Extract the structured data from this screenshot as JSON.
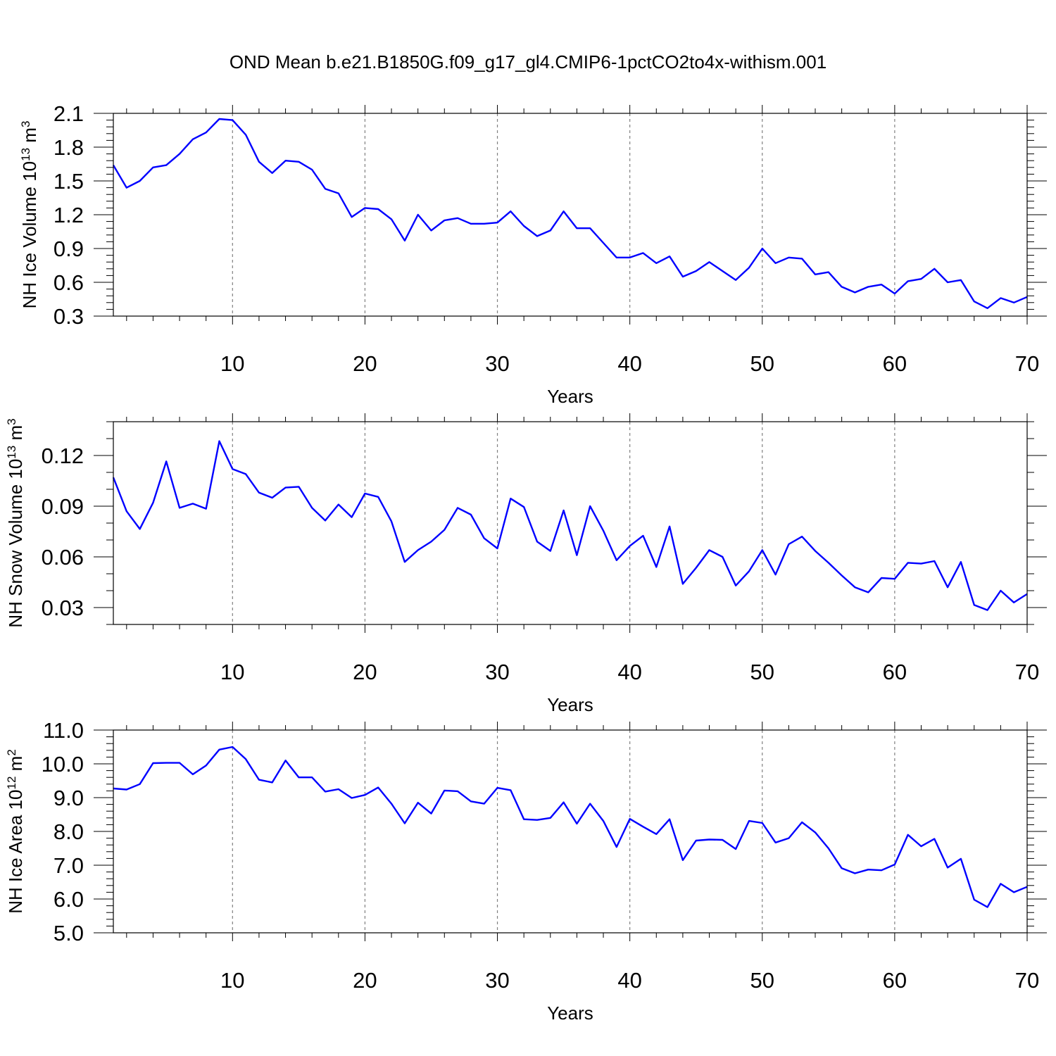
{
  "title": "OND Mean b.e21.B1850G.f09_g17_gl4.CMIP6-1pctCO2to4x-withism.001",
  "colors": {
    "line": "#0000ff",
    "axes": "#000000",
    "grid": "#808080"
  },
  "chart_data": [
    {
      "type": "line",
      "xlabel": "Years",
      "ylabel_main": "NH Ice Volume 10",
      "ylabel_exp": "13",
      "ylabel_unit": " m",
      "ylabel_unit_exp": "3",
      "xlim": [
        1,
        70
      ],
      "ylim": [
        0.3,
        2.1
      ],
      "grid_x": [
        10,
        20,
        30,
        40,
        50,
        60
      ],
      "xticks": [
        10,
        20,
        30,
        40,
        50,
        60,
        70
      ],
      "xtick_labels": [
        "10",
        "20",
        "30",
        "40",
        "50",
        "60",
        "70"
      ],
      "yticks": [
        0.3,
        0.6,
        0.9,
        1.2,
        1.5,
        1.8,
        2.1
      ],
      "ytick_labels": [
        "0.3",
        "0.6",
        "0.9",
        "1.2",
        "1.5",
        "1.8",
        "2.1"
      ],
      "ytick_minor_step": 0.06,
      "x": [
        1,
        2,
        3,
        4,
        5,
        6,
        7,
        8,
        9,
        10,
        11,
        12,
        13,
        14,
        15,
        16,
        17,
        18,
        19,
        20,
        21,
        22,
        23,
        24,
        25,
        26,
        27,
        28,
        29,
        30,
        31,
        32,
        33,
        34,
        35,
        36,
        37,
        38,
        39,
        40,
        41,
        42,
        43,
        44,
        45,
        46,
        47,
        48,
        49,
        50,
        51,
        52,
        53,
        54,
        55,
        56,
        57,
        58,
        59,
        60,
        61,
        62,
        63,
        64,
        65,
        66,
        67,
        68,
        69,
        70
      ],
      "y": [
        1.64,
        1.44,
        1.5,
        1.62,
        1.64,
        1.74,
        1.87,
        1.93,
        2.05,
        2.04,
        1.91,
        1.67,
        1.57,
        1.68,
        1.67,
        1.6,
        1.43,
        1.39,
        1.18,
        1.26,
        1.25,
        1.16,
        0.97,
        1.2,
        1.06,
        1.15,
        1.17,
        1.12,
        1.12,
        1.13,
        1.23,
        1.1,
        1.01,
        1.06,
        1.23,
        1.08,
        1.08,
        0.95,
        0.82,
        0.82,
        0.86,
        0.77,
        0.83,
        0.65,
        0.7,
        0.78,
        0.7,
        0.62,
        0.73,
        0.9,
        0.77,
        0.82,
        0.81,
        0.67,
        0.69,
        0.56,
        0.51,
        0.56,
        0.58,
        0.5,
        0.61,
        0.63,
        0.72,
        0.6,
        0.62,
        0.43,
        0.37,
        0.46,
        0.42,
        0.47
      ]
    },
    {
      "type": "line",
      "xlabel": "Years",
      "ylabel_main": "NH Snow Volume 10",
      "ylabel_exp": "13",
      "ylabel_unit": " m",
      "ylabel_unit_exp": "3",
      "xlim": [
        1,
        70
      ],
      "ylim": [
        0.02,
        0.14
      ],
      "grid_x": [
        10,
        20,
        30,
        40,
        50,
        60
      ],
      "xticks": [
        10,
        20,
        30,
        40,
        50,
        60,
        70
      ],
      "xtick_labels": [
        "10",
        "20",
        "30",
        "40",
        "50",
        "60",
        "70"
      ],
      "yticks": [
        0.03,
        0.06,
        0.09,
        0.12
      ],
      "ytick_labels": [
        "0.03",
        "0.06",
        "0.09",
        "0.12"
      ],
      "ytick_minor_step": 0.01,
      "x": [
        1,
        2,
        3,
        4,
        5,
        6,
        7,
        8,
        9,
        10,
        11,
        12,
        13,
        14,
        15,
        16,
        17,
        18,
        19,
        20,
        21,
        22,
        23,
        24,
        25,
        26,
        27,
        28,
        29,
        30,
        31,
        32,
        33,
        34,
        35,
        36,
        37,
        38,
        39,
        40,
        41,
        42,
        43,
        44,
        45,
        46,
        47,
        48,
        49,
        50,
        51,
        52,
        53,
        54,
        55,
        56,
        57,
        58,
        59,
        60,
        61,
        62,
        63,
        64,
        65,
        66,
        67,
        68,
        69,
        70
      ],
      "y": [
        0.107,
        0.087,
        0.0765,
        0.092,
        0.1165,
        0.089,
        0.0915,
        0.0885,
        0.1285,
        0.112,
        0.109,
        0.098,
        0.095,
        0.101,
        0.1015,
        0.089,
        0.0815,
        0.091,
        0.0835,
        0.0975,
        0.0955,
        0.081,
        0.057,
        0.064,
        0.069,
        0.076,
        0.089,
        0.085,
        0.071,
        0.065,
        0.0945,
        0.0895,
        0.069,
        0.0635,
        0.0875,
        0.061,
        0.09,
        0.0755,
        0.058,
        0.0665,
        0.0725,
        0.054,
        0.078,
        0.044,
        0.0535,
        0.064,
        0.06,
        0.043,
        0.0515,
        0.064,
        0.0495,
        0.0675,
        0.072,
        0.0635,
        0.0565,
        0.049,
        0.042,
        0.039,
        0.0475,
        0.047,
        0.0565,
        0.056,
        0.0575,
        0.042,
        0.057,
        0.0315,
        0.0285,
        0.04,
        0.033,
        0.038
      ]
    },
    {
      "type": "line",
      "xlabel": "Years",
      "ylabel_main": "NH Ice Area 10",
      "ylabel_exp": "12",
      "ylabel_unit": " m",
      "ylabel_unit_exp": "2",
      "xlim": [
        1,
        70
      ],
      "ylim": [
        5.0,
        11.0
      ],
      "grid_x": [
        10,
        20,
        30,
        40,
        50,
        60
      ],
      "xticks": [
        10,
        20,
        30,
        40,
        50,
        60,
        70
      ],
      "xtick_labels": [
        "10",
        "20",
        "30",
        "40",
        "50",
        "60",
        "70"
      ],
      "yticks": [
        5.0,
        6.0,
        7.0,
        8.0,
        9.0,
        10.0,
        11.0
      ],
      "ytick_labels": [
        "5.0",
        "6.0",
        "7.0",
        "8.0",
        "9.0",
        "10.0",
        "11.0"
      ],
      "ytick_minor_step": 0.2,
      "x": [
        1,
        2,
        3,
        4,
        5,
        6,
        7,
        8,
        9,
        10,
        11,
        12,
        13,
        14,
        15,
        16,
        17,
        18,
        19,
        20,
        21,
        22,
        23,
        24,
        25,
        26,
        27,
        28,
        29,
        30,
        31,
        32,
        33,
        34,
        35,
        36,
        37,
        38,
        39,
        40,
        41,
        42,
        43,
        44,
        45,
        46,
        47,
        48,
        49,
        50,
        51,
        52,
        53,
        54,
        55,
        56,
        57,
        58,
        59,
        60,
        61,
        62,
        63,
        64,
        65,
        66,
        67,
        68,
        69,
        70
      ],
      "y": [
        9.27,
        9.24,
        9.4,
        10.02,
        10.03,
        10.03,
        9.69,
        9.95,
        10.42,
        10.5,
        10.14,
        9.53,
        9.45,
        10.1,
        9.6,
        9.6,
        9.18,
        9.25,
        8.99,
        9.08,
        9.3,
        8.82,
        8.24,
        8.85,
        8.53,
        9.21,
        9.19,
        8.89,
        8.82,
        9.29,
        9.22,
        8.36,
        8.34,
        8.4,
        8.86,
        8.23,
        8.82,
        8.31,
        7.54,
        8.37,
        8.14,
        7.92,
        8.36,
        7.15,
        7.73,
        7.76,
        7.75,
        7.48,
        8.31,
        8.25,
        7.67,
        7.8,
        8.27,
        7.97,
        7.5,
        6.91,
        6.76,
        6.87,
        6.85,
        7.02,
        7.9,
        7.56,
        7.78,
        6.93,
        7.19,
        5.98,
        5.76,
        6.45,
        6.2,
        6.36
      ]
    }
  ]
}
